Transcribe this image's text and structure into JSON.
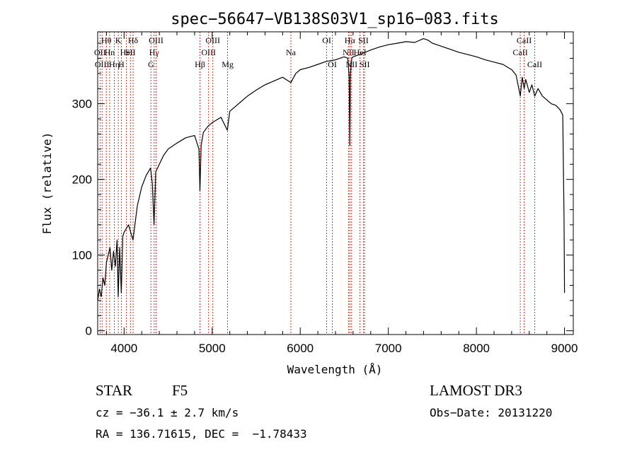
{
  "info": {
    "object_class": "STAR",
    "subclass": "F5",
    "velocity": "cz = −36.1 ± 2.7 km/s",
    "coordinates": "RA = 136.71615, DEC =  −1.78433",
    "survey": "LAMOST DR3",
    "obs_date": "Obs−Date: 20131220"
  },
  "chart_data": {
    "type": "line",
    "title": "spec−56647−VB138S03V1_sp16−083.fits",
    "xlabel": "Wavelength (Å)",
    "ylabel": "Flux (relative)",
    "xlim": [
      3700,
      9100
    ],
    "ylim": [
      -5,
      395
    ],
    "xticks": [
      4000,
      5000,
      6000,
      7000,
      8000,
      9000
    ],
    "yticks": [
      0,
      100,
      200,
      300
    ],
    "grid": false,
    "line_color": "#000000",
    "marker_color": "#c0392b",
    "series": [
      {
        "x": [
          3700,
          3720,
          3740,
          3760,
          3780,
          3800,
          3820,
          3840,
          3860,
          3880,
          3900,
          3920,
          3933,
          3950,
          3968,
          3985,
          4000,
          4050,
          4101,
          4150,
          4200,
          4250,
          4300,
          4320,
          4340,
          4360,
          4380,
          4400,
          4450,
          4500,
          4600,
          4700,
          4800,
          4850,
          4861,
          4875,
          4900,
          4950,
          5000,
          5100,
          5172,
          5200,
          5300,
          5400,
          5500,
          5600,
          5700,
          5800,
          5893,
          5950,
          6000,
          6100,
          6200,
          6300,
          6400,
          6500,
          6540,
          6555,
          6563,
          6570,
          6585,
          6600,
          6700,
          6800,
          6900,
          7000,
          7100,
          7200,
          7300,
          7400,
          7450,
          7500,
          7600,
          7700,
          7800,
          7900,
          8000,
          8100,
          8200,
          8300,
          8400,
          8450,
          8498,
          8520,
          8542,
          8560,
          8600,
          8630,
          8662,
          8700,
          8750,
          8800,
          8850,
          8900,
          8950,
          8980,
          8995,
          9000
        ],
        "values": [
          40,
          55,
          45,
          70,
          60,
          90,
          100,
          110,
          80,
          105,
          85,
          120,
          45,
          110,
          50,
          125,
          130,
          140,
          120,
          165,
          190,
          205,
          215,
          195,
          140,
          210,
          215,
          220,
          232,
          240,
          248,
          255,
          258,
          240,
          185,
          245,
          262,
          270,
          275,
          282,
          265,
          290,
          300,
          310,
          318,
          325,
          330,
          335,
          328,
          340,
          345,
          348,
          352,
          356,
          358,
          362,
          360,
          335,
          245,
          340,
          360,
          362,
          366,
          371,
          375,
          378,
          380,
          382,
          381,
          386,
          384,
          380,
          376,
          372,
          368,
          365,
          362,
          358,
          355,
          352,
          345,
          338,
          310,
          335,
          320,
          332,
          315,
          325,
          310,
          320,
          310,
          305,
          300,
          298,
          292,
          285,
          150,
          50
        ]
      }
    ],
    "line_markers": [
      {
        "wavelength": 3727,
        "label": "OII",
        "row": 1
      },
      {
        "wavelength": 3750,
        "label": "OIII",
        "row": 2
      },
      {
        "wavelength": 3798,
        "label": "Hθ",
        "row": 0
      },
      {
        "wavelength": 3836,
        "label": "Hn",
        "row": 1
      },
      {
        "wavelength": 3889,
        "label": "Hη",
        "row": 2
      },
      {
        "wavelength": 3934,
        "label": "K",
        "row": 0
      },
      {
        "wavelength": 3969,
        "label": "H",
        "row": 2
      },
      {
        "wavelength": 4026,
        "label": "HeI",
        "row": 1
      },
      {
        "wavelength": 4072,
        "label": "SII",
        "row": 1
      },
      {
        "wavelength": 4102,
        "label": "Hδ",
        "row": 0
      },
      {
        "wavelength": 4305,
        "label": "G",
        "row": 2
      },
      {
        "wavelength": 4341,
        "label": "Hγ",
        "row": 1
      },
      {
        "wavelength": 4363,
        "label": "OIII",
        "row": 0
      },
      {
        "wavelength": 4861,
        "label": "Hβ",
        "row": 2
      },
      {
        "wavelength": 4959,
        "label": "OIII",
        "row": 1
      },
      {
        "wavelength": 5007,
        "label": "OIII",
        "row": 0
      },
      {
        "wavelength": 5175,
        "label": "Mg",
        "row": 2
      },
      {
        "wavelength": 5894,
        "label": "Na",
        "row": 1
      },
      {
        "wavelength": 6300,
        "label": "OI",
        "row": 0
      },
      {
        "wavelength": 6364,
        "label": "OI",
        "row": 2
      },
      {
        "wavelength": 6548,
        "label": "NII",
        "row": 1
      },
      {
        "wavelength": 6563,
        "label": "Hα",
        "row": 0
      },
      {
        "wavelength": 6583,
        "label": "NII",
        "row": 2
      },
      {
        "wavelength": 6678,
        "label": "HeI",
        "row": 1
      },
      {
        "wavelength": 6717,
        "label": "SII",
        "row": 0
      },
      {
        "wavelength": 6731,
        "label": "SII",
        "row": 2
      },
      {
        "wavelength": 8498,
        "label": "CaII",
        "row": 1
      },
      {
        "wavelength": 8542,
        "label": "CaII",
        "row": 0
      },
      {
        "wavelength": 8662,
        "label": "CaII",
        "row": 2
      }
    ]
  }
}
